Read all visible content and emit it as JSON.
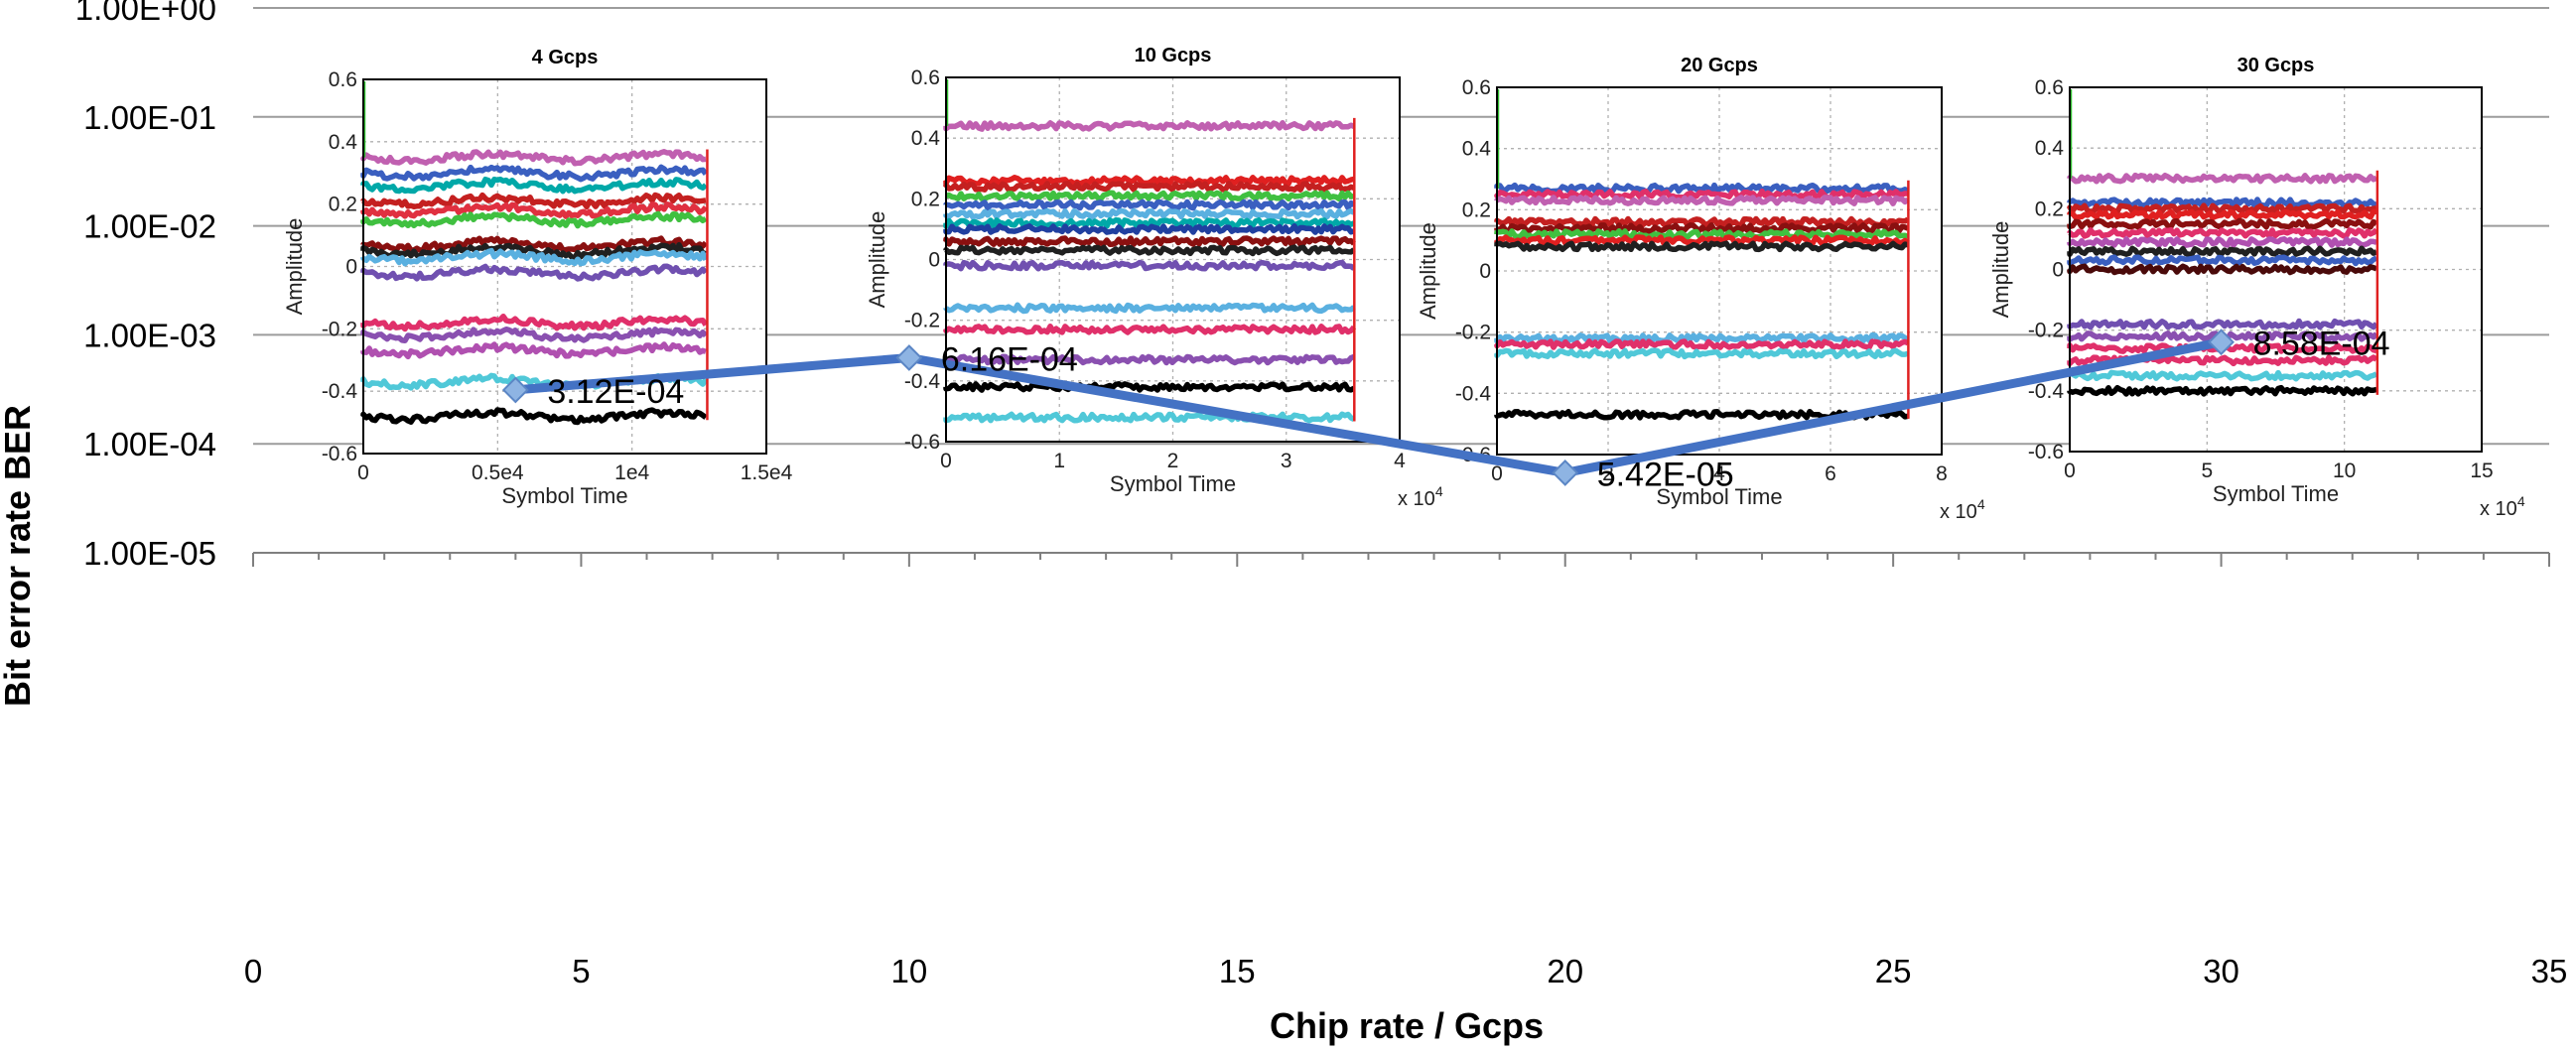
{
  "chart_data": [
    {
      "type": "line",
      "role": "main",
      "title": "",
      "xlabel": "Chip rate / Gcps",
      "ylabel": "Bit error rate BER",
      "yscale": "log",
      "xlim": [
        0,
        35
      ],
      "ylim": [
        1e-05,
        1
      ],
      "xticks": [
        0,
        5,
        10,
        15,
        20,
        25,
        30,
        35
      ],
      "xtick_labels": [
        "0",
        "5",
        "10",
        "15",
        "20",
        "25",
        "30",
        "35"
      ],
      "yticks": [
        1,
        0.1,
        0.01,
        0.001,
        0.0001,
        1e-05
      ],
      "ytick_labels": [
        "1.00E+00",
        "1.00E-01",
        "1.00E-02",
        "1.00E-03",
        "1.00E-04",
        "1.00E-05"
      ],
      "grid": "horizontal",
      "series": [
        {
          "name": "BER",
          "color": "#4472C4",
          "marker_color": "#8EB4E3",
          "x": [
            4,
            10,
            20,
            30
          ],
          "y": [
            0.000312,
            0.000616,
            5.42e-05,
            0.000858
          ],
          "labels": [
            "3.12E-04",
            "6.16E-04",
            "5.42E-05",
            "8.58E-04"
          ]
        }
      ]
    },
    {
      "type": "line",
      "role": "inset",
      "title": "4 Gcps",
      "xlabel": "Symbol Time",
      "ylabel": "Amplitude",
      "xlim": [
        0,
        15000
      ],
      "ylim": [
        -0.6,
        0.6
      ],
      "xtick_labels": [
        "0",
        "0.5e4",
        "1e4",
        "1.5e4"
      ],
      "ytick_labels": [
        "0.6",
        "0.4",
        "0.2",
        "0",
        "-0.2",
        "-0.4",
        "-0.6"
      ],
      "x_multiplier": "",
      "data_xmax": 12800,
      "levels": [
        0.35,
        0.3,
        0.26,
        0.21,
        0.18,
        0.15,
        0.07,
        0.05,
        0.03,
        -0.02,
        -0.18,
        -0.22,
        -0.27,
        -0.37,
        -0.48
      ],
      "level_colors": [
        "#c060b0",
        "#3a5fc0",
        "#00a8a8",
        "#c42020",
        "#e03040",
        "#40c040",
        "#8a1010",
        "#202020",
        "#5ab0e0",
        "#7050b0",
        "#e0306a",
        "#8a50b0",
        "#b050b0",
        "#50c8d8",
        "#000000"
      ]
    },
    {
      "type": "line",
      "role": "inset",
      "title": "10 Gcps",
      "xlabel": "Symbol Time",
      "ylabel": "Amplitude",
      "xlim": [
        0,
        4
      ],
      "ylim": [
        -0.6,
        0.6
      ],
      "xtick_labels": [
        "0",
        "1",
        "2",
        "3",
        "4"
      ],
      "ytick_labels": [
        "0.6",
        "0.4",
        "0.2",
        "0",
        "-0.2",
        "-0.4",
        "-0.6"
      ],
      "x_multiplier": "x 10^4",
      "data_xmax": 3.6,
      "levels": [
        0.44,
        0.26,
        0.24,
        0.21,
        0.18,
        0.15,
        0.12,
        0.1,
        0.06,
        0.03,
        -0.02,
        -0.16,
        -0.23,
        -0.33,
        -0.42,
        -0.52
      ],
      "level_colors": [
        "#c060b0",
        "#e02020",
        "#c42020",
        "#40c040",
        "#3a5fc0",
        "#5ab0e0",
        "#00a8a8",
        "#2040a0",
        "#8a1010",
        "#202020",
        "#7050b0",
        "#5ab0e0",
        "#e0306a",
        "#8a50b0",
        "#000000",
        "#50c8d8"
      ]
    },
    {
      "type": "line",
      "role": "inset",
      "title": "20 Gcps",
      "xlabel": "Symbol Time",
      "ylabel": "Amplitude",
      "xlim": [
        0,
        8
      ],
      "ylim": [
        -0.6,
        0.6
      ],
      "xtick_labels": [
        "0",
        "2",
        "4",
        "6",
        "8"
      ],
      "ytick_labels": [
        "0.6",
        "0.4",
        "0.2",
        "0",
        "-0.2",
        "-0.4",
        "-0.6"
      ],
      "x_multiplier": "x 10^4",
      "data_xmax": 7.4,
      "levels": [
        0.27,
        0.25,
        0.23,
        0.16,
        0.14,
        0.12,
        0.1,
        0.08,
        -0.22,
        -0.24,
        -0.27,
        -0.47
      ],
      "level_colors": [
        "#3a5fc0",
        "#e0306a",
        "#c060b0",
        "#c42020",
        "#8a1010",
        "#40c040",
        "#e02020",
        "#202020",
        "#5ab0e0",
        "#e0306a",
        "#50c8d8",
        "#000000"
      ]
    },
    {
      "type": "line",
      "role": "inset",
      "title": "30 Gcps",
      "xlabel": "Symbol Time",
      "ylabel": "Amplitude",
      "xlim": [
        0,
        15
      ],
      "ylim": [
        -0.6,
        0.6
      ],
      "xtick_labels": [
        "0",
        "5",
        "10",
        "15"
      ],
      "ytick_labels": [
        "0.6",
        "0.4",
        "0.2",
        "0",
        "-0.2",
        "-0.4",
        "-0.6"
      ],
      "x_multiplier": "x 10^4",
      "data_xmax": 11.2,
      "levels": [
        0.3,
        0.22,
        0.2,
        0.18,
        0.15,
        0.12,
        0.09,
        0.06,
        0.03,
        0.0,
        -0.18,
        -0.22,
        -0.26,
        -0.3,
        -0.35,
        -0.4
      ],
      "level_colors": [
        "#c060b0",
        "#3a5fc0",
        "#c42020",
        "#e02020",
        "#8a1010",
        "#e0306a",
        "#b050b0",
        "#202020",
        "#3a5fc0",
        "#4a0a0a",
        "#7050b0",
        "#8a50b0",
        "#e0306a",
        "#e0306a",
        "#50c8d8",
        "#000000"
      ]
    }
  ]
}
